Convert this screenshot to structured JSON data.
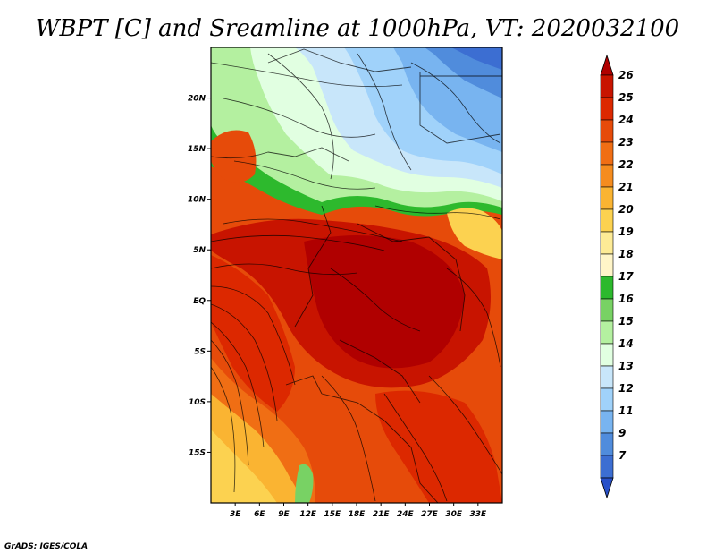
{
  "title": "WBPT [C] and Sreamline at 1000hPa, VT: 2020032100",
  "credit": "GrADS: IGES/COLA",
  "map": {
    "lon_range": [
      0,
      36
    ],
    "lat_range": [
      -20,
      25
    ],
    "lon_ticks": [
      "3E",
      "6E",
      "9E",
      "12E",
      "15E",
      "18E",
      "21E",
      "24E",
      "27E",
      "30E",
      "33E"
    ],
    "lon_tick_values": [
      3,
      6,
      9,
      12,
      15,
      18,
      21,
      24,
      27,
      30,
      33
    ],
    "lat_ticks": [
      "20N",
      "15N",
      "10N",
      "5N",
      "EQ",
      "5S",
      "10S",
      "15S"
    ],
    "lat_tick_values": [
      20,
      15,
      10,
      5,
      0,
      -5,
      -10,
      -15
    ]
  },
  "colorbar": {
    "labels": [
      "26",
      "25",
      "24",
      "23",
      "22",
      "21",
      "20",
      "19",
      "18",
      "17",
      "16",
      "15",
      "14",
      "13",
      "12",
      "11",
      "9",
      "7"
    ],
    "colors": [
      "#b00000",
      "#c81400",
      "#dc2800",
      "#e64b0a",
      "#f06e14",
      "#f58c1e",
      "#fab432",
      "#fcd250",
      "#fdeb96",
      "#fff5c8",
      "#2db92d",
      "#78d264",
      "#b4f0a0",
      "#e1ffe1",
      "#c8e6fa",
      "#a0d2fa",
      "#78b4f0",
      "#508cdc",
      "#3c6ed2",
      "#2850c8"
    ]
  }
}
